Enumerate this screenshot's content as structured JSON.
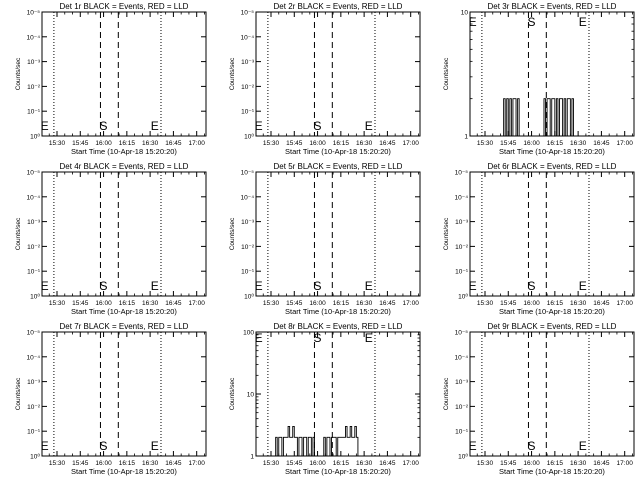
{
  "chart_data": [
    {
      "type": "line",
      "title": "Det 1r BLACK = Events, RED = LLD",
      "xlabel": "Start Time (10-Apr-18 15:20:20)",
      "ylabel": "Counts/sec",
      "x_ticks": [
        "15:30",
        "15:45",
        "16:00",
        "16:15",
        "16:30",
        "16:45",
        "17:00"
      ],
      "y_scale": "log",
      "y_ticks": [
        "10⁰",
        "10⁻¹",
        "10⁻²",
        "10⁻³",
        "10⁻⁴",
        "10⁻⁵"
      ],
      "markers": [
        "E",
        "S",
        "E"
      ],
      "series": []
    },
    {
      "type": "line",
      "title": "Det 2r BLACK = Events, RED = LLD",
      "xlabel": "Start Time (10-Apr-18 15:20:20)",
      "ylabel": "Counts/sec",
      "x_ticks": [
        "15:30",
        "15:45",
        "16:00",
        "16:15",
        "16:30",
        "16:45",
        "17:00"
      ],
      "y_scale": "log",
      "y_ticks": [
        "10⁰",
        "10⁻¹",
        "10⁻²",
        "10⁻³",
        "10⁻⁴",
        "10⁻⁵"
      ],
      "markers": [
        "E",
        "S",
        "E"
      ],
      "series": []
    },
    {
      "type": "line",
      "title": "Det 3r BLACK = Events, RED = LLD",
      "xlabel": "Start Time (10-Apr-18 15:20:20)",
      "ylabel": "Counts/sec",
      "x_ticks": [
        "15:30",
        "15:45",
        "16:00",
        "16:15",
        "16:30",
        "16:45",
        "17:00"
      ],
      "y_scale": "log",
      "y_ticks": [
        "1",
        "10"
      ],
      "markers": [
        "E",
        "S",
        "E"
      ],
      "series": [
        {
          "x": [
            "15:42",
            "15:43",
            "15:44",
            "15:45",
            "15:46",
            "15:47",
            "15:48",
            "15:49",
            "15:50",
            "15:51",
            "15:52",
            "16:08",
            "16:09",
            "16:10",
            "16:12",
            "16:13",
            "16:14",
            "16:15",
            "16:16",
            "16:17",
            "16:18",
            "16:19",
            "16:20",
            "16:21",
            "16:22",
            "16:23",
            "16:24",
            "16:25",
            "16:26"
          ],
          "values": [
            2,
            1,
            2,
            1,
            2,
            1,
            2,
            2,
            1,
            2,
            1,
            2,
            1,
            2,
            1,
            2,
            2,
            1,
            2,
            1,
            2,
            2,
            1,
            2,
            1,
            2,
            2,
            1,
            2
          ]
        }
      ]
    },
    {
      "type": "line",
      "title": "Det 4r BLACK = Events, RED = LLD",
      "xlabel": "Start Time (10-Apr-18 15:20:20)",
      "ylabel": "Counts/sec",
      "x_ticks": [
        "15:30",
        "15:45",
        "16:00",
        "16:15",
        "16:30",
        "16:45",
        "17:00"
      ],
      "y_scale": "log",
      "y_ticks": [
        "10⁰",
        "10⁻¹",
        "10⁻²",
        "10⁻³",
        "10⁻⁴",
        "10⁻⁵"
      ],
      "markers": [
        "E",
        "S",
        "E"
      ],
      "series": []
    },
    {
      "type": "line",
      "title": "Det 5r BLACK = Events, RED = LLD",
      "xlabel": "Start Time (10-Apr-18 15:20:20)",
      "ylabel": "Counts/sec",
      "x_ticks": [
        "15:30",
        "15:45",
        "16:00",
        "16:15",
        "16:30",
        "16:45",
        "17:00"
      ],
      "y_scale": "log",
      "y_ticks": [
        "10⁰",
        "10⁻¹",
        "10⁻²",
        "10⁻³",
        "10⁻⁴",
        "10⁻⁵"
      ],
      "markers": [
        "E",
        "S",
        "E"
      ],
      "series": []
    },
    {
      "type": "line",
      "title": "Det 6r BLACK = Events, RED = LLD",
      "xlabel": "Start Time (10-Apr-18 15:20:20)",
      "ylabel": "Counts/sec",
      "x_ticks": [
        "15:30",
        "15:45",
        "16:00",
        "16:15",
        "16:30",
        "16:45",
        "17:00"
      ],
      "y_scale": "log",
      "y_ticks": [
        "10⁰",
        "10⁻¹",
        "10⁻²",
        "10⁻³",
        "10⁻⁴",
        "10⁻⁵"
      ],
      "markers": [
        "E",
        "S",
        "E"
      ],
      "series": []
    },
    {
      "type": "line",
      "title": "Det 7r BLACK = Events, RED = LLD",
      "xlabel": "Start Time (10-Apr-18 15:20:20)",
      "ylabel": "Counts/sec",
      "x_ticks": [
        "15:30",
        "15:45",
        "16:00",
        "16:15",
        "16:30",
        "16:45",
        "17:00"
      ],
      "y_scale": "log",
      "y_ticks": [
        "10⁰",
        "10⁻¹",
        "10⁻²",
        "10⁻³",
        "10⁻⁴",
        "10⁻⁵"
      ],
      "markers": [
        "E",
        "S",
        "E"
      ],
      "series": []
    },
    {
      "type": "line",
      "title": "Det 8r BLACK = Events, RED = LLD",
      "xlabel": "Start Time (10-Apr-18 15:20:20)",
      "ylabel": "Counts/sec",
      "x_ticks": [
        "15:30",
        "15:45",
        "16:00",
        "16:15",
        "16:30",
        "16:45",
        "17:00"
      ],
      "y_scale": "log",
      "y_ticks": [
        "1",
        "10",
        "100"
      ],
      "markers": [
        "E",
        "S",
        "E"
      ],
      "series": [
        {
          "x": [
            "15:33",
            "15:34",
            "15:35",
            "15:36",
            "15:37",
            "15:38",
            "15:39",
            "15:40",
            "15:41",
            "15:42",
            "15:43",
            "15:44",
            "15:45",
            "15:46",
            "15:47",
            "15:48",
            "15:49",
            "15:50",
            "15:51",
            "15:52",
            "15:53",
            "15:54",
            "15:55",
            "15:56",
            "15:57",
            "15:58",
            "16:04",
            "16:05",
            "16:06",
            "16:07",
            "16:08",
            "16:09",
            "16:10",
            "16:11",
            "16:12",
            "16:13",
            "16:14",
            "16:15",
            "16:16",
            "16:17",
            "16:18",
            "16:19",
            "16:20",
            "16:21",
            "16:22",
            "16:23",
            "16:24",
            "16:25",
            "16:26"
          ],
          "values": [
            2,
            1,
            2,
            2,
            1,
            2,
            2,
            2,
            3,
            2,
            2,
            3,
            2,
            2,
            1,
            2,
            2,
            1,
            2,
            2,
            1,
            2,
            2,
            1,
            2,
            1,
            2,
            1,
            2,
            2,
            1,
            2,
            2,
            2,
            1,
            2,
            2,
            2,
            2,
            2,
            3,
            2,
            2,
            3,
            2,
            2,
            3,
            2,
            1
          ]
        }
      ]
    },
    {
      "type": "line",
      "title": "Det 9r BLACK = Events, RED = LLD",
      "xlabel": "Start Time (10-Apr-18 15:20:20)",
      "ylabel": "Counts/sec",
      "x_ticks": [
        "15:30",
        "15:45",
        "16:00",
        "16:15",
        "16:30",
        "16:45",
        "17:00"
      ],
      "y_scale": "log",
      "y_ticks": [
        "10⁰",
        "10⁻¹",
        "10⁻²",
        "10⁻³",
        "10⁻⁴",
        "10⁻⁵"
      ],
      "markers": [
        "E",
        "S",
        "E"
      ],
      "series": []
    }
  ]
}
